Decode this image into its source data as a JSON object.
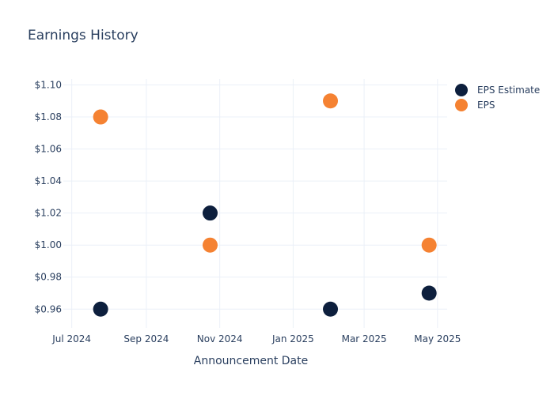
{
  "chart_data": {
    "type": "scatter",
    "title": "Earnings History",
    "xlabel": "Announcement Date",
    "ylabel": "",
    "x_ticks": [
      "Jul 2024",
      "Sep 2024",
      "Nov 2024",
      "Jan 2025",
      "Mar 2025",
      "May 2025"
    ],
    "x_tick_dates": [
      "2024-07-01",
      "2024-09-01",
      "2024-11-01",
      "2025-01-01",
      "2025-03-01",
      "2025-05-01"
    ],
    "xlim": [
      "2024-06-24",
      "2025-05-09"
    ],
    "y_ticks": [
      0.96,
      0.98,
      1.0,
      1.02,
      1.04,
      1.06,
      1.08,
      1.1
    ],
    "y_tick_labels": [
      "$0.96",
      "$0.98",
      "$1.00",
      "$1.02",
      "$1.04",
      "$1.06",
      "$1.08",
      "$1.10"
    ],
    "ylim": [
      0.9483,
      1.1037
    ],
    "grid": true,
    "legend_position": "top-right",
    "series": [
      {
        "name": "EPS Estimate",
        "color": "#0d1f3d",
        "points": [
          {
            "x": "2024-07-25",
            "y": 0.96
          },
          {
            "x": "2024-10-24",
            "y": 1.02
          },
          {
            "x": "2025-02-01",
            "y": 0.96
          },
          {
            "x": "2025-04-24",
            "y": 0.97
          }
        ]
      },
      {
        "name": "EPS",
        "color": "#f58232",
        "points": [
          {
            "x": "2024-07-25",
            "y": 1.08
          },
          {
            "x": "2024-10-24",
            "y": 1.0
          },
          {
            "x": "2025-02-01",
            "y": 1.09
          },
          {
            "x": "2025-04-24",
            "y": 1.0
          }
        ]
      }
    ]
  }
}
